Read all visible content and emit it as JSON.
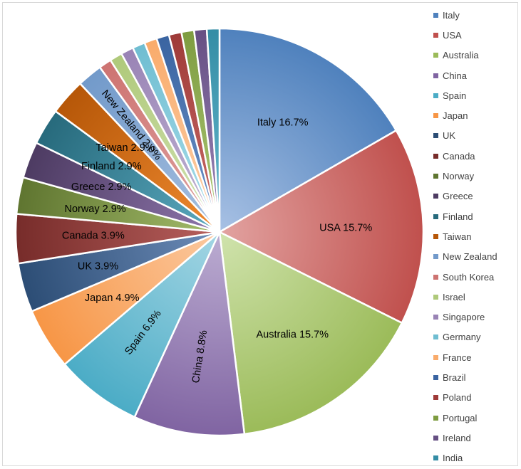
{
  "chart_data": {
    "type": "pie",
    "title": "",
    "slices": [
      {
        "label": "Italy",
        "value": 16.7,
        "text": "Italy 16.7%",
        "color": "#4f81bd",
        "light": "#a8c1e4"
      },
      {
        "label": "USA",
        "value": 15.7,
        "text": "USA 15.7%",
        "color": "#c0504d",
        "light": "#e2a3a1"
      },
      {
        "label": "Australia",
        "value": 15.7,
        "text": "Australia 15.7%",
        "color": "#9bbb59",
        "light": "#d0e3ad"
      },
      {
        "label": "China",
        "value": 8.8,
        "text": "China 8.8%",
        "color": "#8064a2",
        "light": "#bcadd2"
      },
      {
        "label": "Spain",
        "value": 6.9,
        "text": "Spain 6.9%",
        "color": "#4bacc6",
        "light": "#a4d6e4"
      },
      {
        "label": "Japan",
        "value": 4.9,
        "text": "Japan 4.9%",
        "color": "#f79646",
        "light": "#fbc9a0"
      },
      {
        "label": "UK",
        "value": 3.9,
        "text": "UK 3.9%",
        "color": "#2c4d75",
        "light": "#6d8cb8"
      },
      {
        "label": "Canada",
        "value": 3.9,
        "text": "Canada 3.9%",
        "color": "#772c2a",
        "light": "#b8605d"
      },
      {
        "label": "Norway",
        "value": 2.9,
        "text": "Norway 2.9%",
        "color": "#5f7530",
        "light": "#a4bd6b"
      },
      {
        "label": "Greece",
        "value": 2.9,
        "text": "Greece 2.9%",
        "color": "#4d3b62",
        "light": "#8e76ac"
      },
      {
        "label": "Finland",
        "value": 2.9,
        "text": "Finland 2.9%",
        "color": "#276a7c",
        "light": "#5aa9bf"
      },
      {
        "label": "Taiwan",
        "value": 2.9,
        "text": "Taiwan 2.9%",
        "color": "#b65708",
        "light": "#ef8a30"
      },
      {
        "label": "New Zealand",
        "value": 2.0,
        "text": "New Zealand 2.0%",
        "color": "#729aca",
        "light": "#a7c0e0"
      },
      {
        "label": "South Korea",
        "value": 1.0,
        "text": "",
        "color": "#cd7371",
        "light": "#e0a5a3"
      },
      {
        "label": "Israel",
        "value": 1.0,
        "text": "",
        "color": "#afc97a",
        "light": "#d3e3b4"
      },
      {
        "label": "Singapore",
        "value": 1.0,
        "text": "",
        "color": "#9983b5",
        "light": "#c4b8d6"
      },
      {
        "label": "Germany",
        "value": 1.0,
        "text": "",
        "color": "#6fbdd1",
        "light": "#ade0ec"
      },
      {
        "label": "France",
        "value": 1.0,
        "text": "",
        "color": "#f9ab6b",
        "light": "#fcd1ac"
      },
      {
        "label": "Brazil",
        "value": 1.0,
        "text": "",
        "color": "#3a64a1",
        "light": "#6f95cb"
      },
      {
        "label": "Poland",
        "value": 1.0,
        "text": "",
        "color": "#9e3a38",
        "light": "#cd6e6b"
      },
      {
        "label": "Portugal",
        "value": 1.0,
        "text": "",
        "color": "#7e9c40",
        "light": "#aec978"
      },
      {
        "label": "Ireland",
        "value": 1.0,
        "text": "",
        "color": "#664f83",
        "light": "#9d87ba"
      },
      {
        "label": "India",
        "value": 1.0,
        "text": "",
        "color": "#348da5",
        "light": "#68b9cf"
      }
    ],
    "legend_position": "right"
  }
}
